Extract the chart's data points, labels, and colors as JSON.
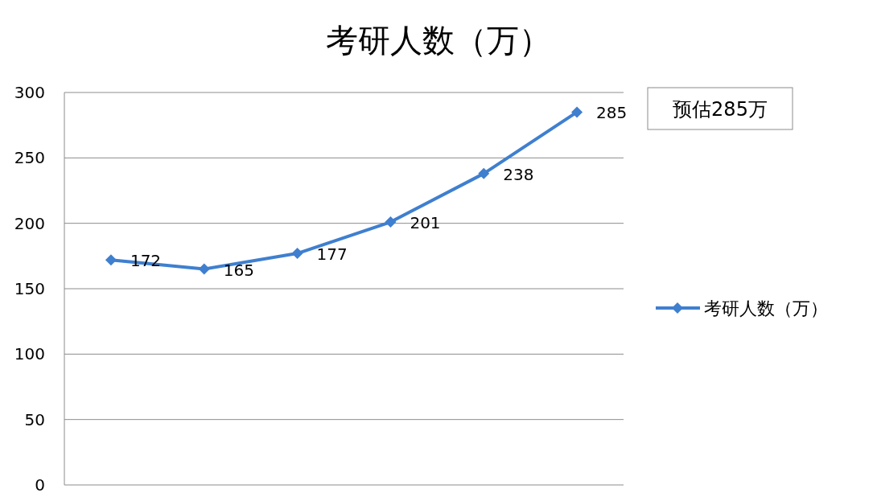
{
  "chart_data": {
    "type": "line",
    "title": "考研人数（万）",
    "categories": [
      null,
      null,
      null,
      null,
      null,
      null
    ],
    "series": [
      {
        "name": "考研人数（万）",
        "color": "#3f7fcf",
        "values": [
          172,
          165,
          177,
          201,
          238,
          285
        ]
      }
    ],
    "ylim": [
      0,
      300
    ],
    "yticks": [
      0,
      50,
      100,
      150,
      200,
      250,
      300
    ],
    "grid": "y",
    "legend": "right",
    "marker": "diamond",
    "line_style": "solid",
    "data_labels": true,
    "tick_labels": "y",
    "annotations": [
      "预估285万"
    ]
  }
}
